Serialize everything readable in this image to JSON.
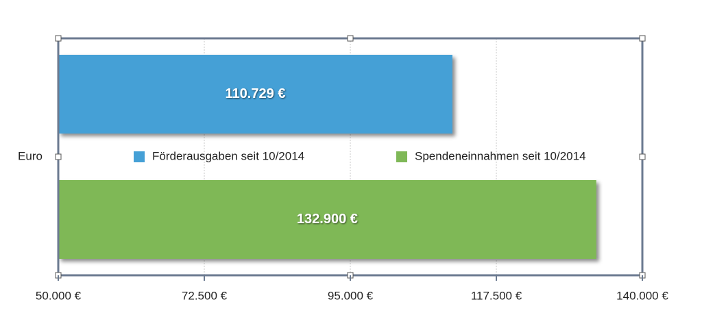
{
  "chart_data": {
    "type": "bar",
    "orientation": "horizontal",
    "categories": [
      "Euro"
    ],
    "series": [
      {
        "name": "Förderausgaben seit 10/2014",
        "color": "#45a0d6",
        "values": [
          110729
        ],
        "value_labels": [
          "110.729 €"
        ]
      },
      {
        "name": "Spendeneinnahmen seit 10/2014",
        "color": "#7fb857",
        "values": [
          132900
        ],
        "value_labels": [
          "132.900 €"
        ]
      }
    ],
    "xlim": [
      50000,
      140000
    ],
    "xticks": [
      {
        "value": 50000,
        "label": "50.000 €"
      },
      {
        "value": 72500,
        "label": "72.500 €"
      },
      {
        "value": 95000,
        "label": "95.000 €"
      },
      {
        "value": 117500,
        "label": "117.500 €"
      },
      {
        "value": 140000,
        "label": "140.000 €"
      }
    ],
    "grid": true
  }
}
